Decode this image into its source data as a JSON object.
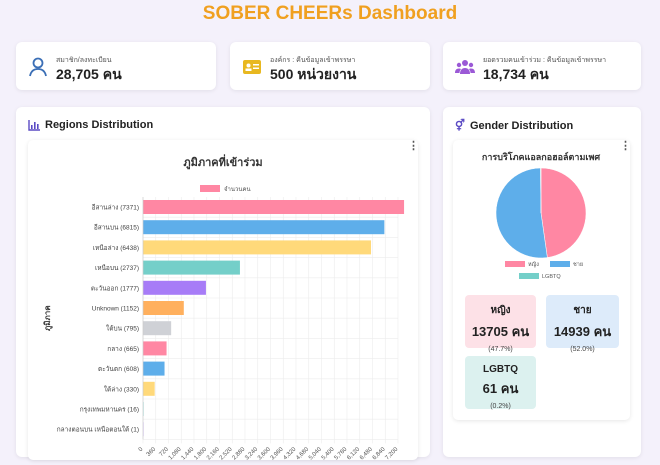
{
  "header": {
    "title": "SOBER CHEERs Dashboard"
  },
  "stats": [
    {
      "label": "สมาชิก/ลงทะเบียน",
      "value": "28,705 คน",
      "icon": "user-icon",
      "color": "#3b6fb6"
    },
    {
      "label": "องค์กร : คืนข้อมูลเข้าพรรษา",
      "value": "500 หน่วยงาน",
      "icon": "id-card-icon",
      "color": "#e8b820"
    },
    {
      "label": "ยอดรวมคนเข้าร่วม : คืนข้อมูลเข้าพรรษา",
      "value": "18,734 คน",
      "icon": "users-icon",
      "color": "#9b59d6"
    }
  ],
  "regions": {
    "heading": "Regions Distribution",
    "icon": "bar-chart-icon"
  },
  "gender": {
    "heading": "Gender Distribution",
    "icon": "gender-icon",
    "boxes": [
      {
        "name": "หญิง",
        "count": "13705 คน",
        "pct": "(47.7%)",
        "bg": "#fde1e7"
      },
      {
        "name": "ชาย",
        "count": "14939 คน",
        "pct": "(52.0%)",
        "bg": "#ddebfa"
      },
      {
        "name": "LGBTQ",
        "count": "61 คน",
        "pct": "(0.2%)",
        "bg": "#dcf1ef"
      }
    ]
  },
  "chart_data": [
    {
      "type": "bar",
      "orientation": "horizontal",
      "title": "ภูมิภาคที่เข้าร่วม",
      "ylabel": "ภูมิภาค",
      "xlabel": "",
      "legend": [
        "จำนวนคน"
      ],
      "legend_position": "top",
      "grid": true,
      "xlim": [
        0,
        7200
      ],
      "x_ticks": [
        0,
        360,
        720,
        1080,
        1440,
        1800,
        2160,
        2520,
        2880,
        3240,
        3600,
        3960,
        4320,
        4680,
        5040,
        5400,
        5760,
        6120,
        6480,
        6840,
        7200
      ],
      "categories": [
        "อีสานล่าง (7371)",
        "อีสานบน (6815)",
        "เหนือล่าง (6438)",
        "เหนือบน (2737)",
        "ตะวันออก (1777)",
        "Unknown (1152)",
        "ใต้บน (795)",
        "กลาง (665)",
        "ตะวันตก (608)",
        "ใต้ล่าง (330)",
        "กรุงเทพมหานคร (16)",
        "กลางตอนบน เหนือตอนใต้ (1)"
      ],
      "values": [
        7371,
        6815,
        6438,
        2737,
        1777,
        1152,
        795,
        665,
        608,
        330,
        16,
        1
      ],
      "colors": [
        "#ff87a3",
        "#5eaeea",
        "#ffd97a",
        "#74cfc9",
        "#a77cf7",
        "#ffb05e",
        "#cfd1d6",
        "#ff87a3",
        "#5eaeea",
        "#ffd97a",
        "#74cfc9",
        "#a77cf7"
      ]
    },
    {
      "type": "pie",
      "title": "การบริโภคแอลกอฮอล์ตามเพศ",
      "categories": [
        "หญิง",
        "ชาย",
        "LGBTQ"
      ],
      "values": [
        13705,
        14939,
        61
      ],
      "colors": [
        "#ff87a3",
        "#5eaeea",
        "#74cfc9"
      ],
      "legend_position": "bottom"
    }
  ]
}
